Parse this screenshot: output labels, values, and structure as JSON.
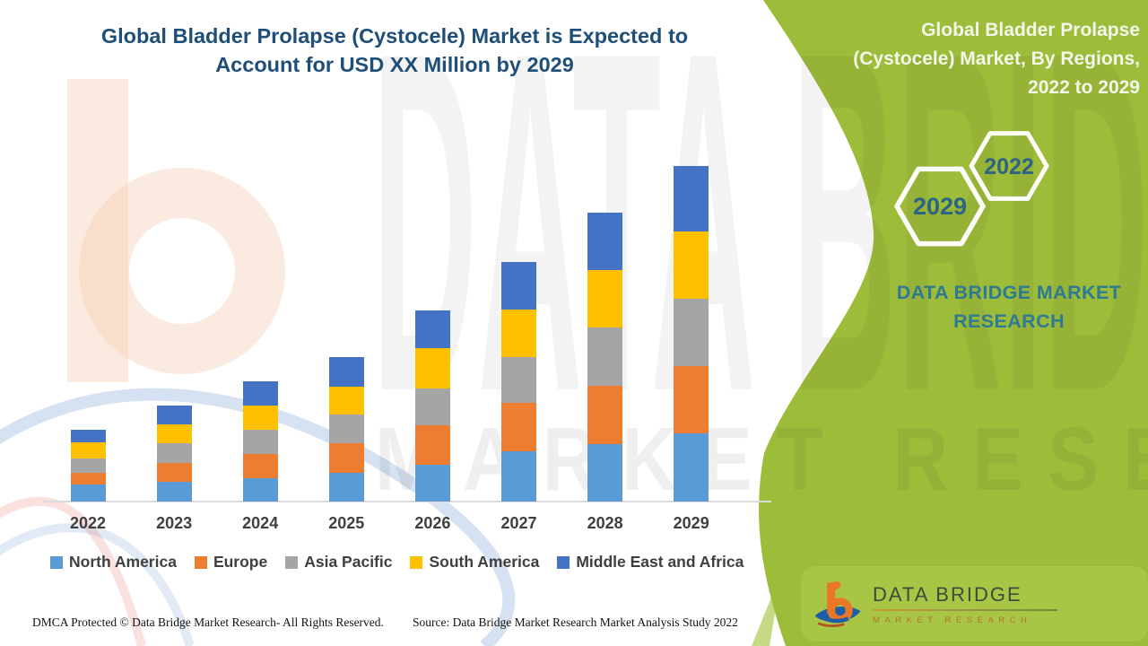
{
  "header": {
    "title_lines": [
      "Global Bladder Prolapse (Cystocele) Market is Expected to",
      "Account for USD XX Million by 2029"
    ]
  },
  "side_panel": {
    "title_lines": [
      "Global Bladder Prolapse",
      "(Cystocele) Market, By Regions,",
      "2022 to 2029"
    ],
    "hexagon_years": {
      "start": "2022",
      "end": "2029"
    },
    "brand_text": "DATA BRIDGE MARKET RESEARCH"
  },
  "watermarks": {
    "brand_text": "DATA BRIDGE",
    "sub_text": "MARKET RESEARCH"
  },
  "chart_data": {
    "type": "bar",
    "stacked": true,
    "title": "Global Bladder Prolapse (Cystocele) Market is Expected to Account for USD XX Million by 2029",
    "xlabel": "",
    "ylabel": "",
    "y_axis_labels_visible": false,
    "grid": false,
    "legend_position": "bottom",
    "categories": [
      "2022",
      "2023",
      "2024",
      "2025",
      "2026",
      "2027",
      "2028",
      "2029"
    ],
    "series": [
      {
        "name": "North America",
        "color": "#5B9BD5",
        "values": [
          19,
          22,
          26,
          32,
          41,
          56,
          64,
          76
        ]
      },
      {
        "name": "Europe",
        "color": "#ED7D31",
        "values": [
          13,
          21,
          27,
          33,
          44,
          54,
          65,
          75
        ]
      },
      {
        "name": "Asia Pacific",
        "color": "#A5A5A5",
        "values": [
          16,
          22,
          27,
          32,
          41,
          51,
          65,
          75
        ]
      },
      {
        "name": "South America",
        "color": "#FFC000",
        "values": [
          18,
          21,
          27,
          31,
          45,
          53,
          64,
          75
        ]
      },
      {
        "name": "Middle East and Africa",
        "color": "#4472C4",
        "values": [
          14,
          21,
          27,
          33,
          42,
          53,
          64,
          73
        ]
      }
    ],
    "stack_totals": [
      80,
      107,
      134,
      161,
      213,
      267,
      322,
      374
    ]
  },
  "footer": {
    "dmca_text": "DMCA Protected © Data Bridge Market Research- All Rights Reserved.",
    "source_text": "Source: Data Bridge Market Research Market Analysis Study 2022"
  },
  "logo": {
    "title": "DATA BRIDGE",
    "subtitle": "MARKET RESEARCH"
  },
  "colors": {
    "green_panel": "#9DBC3A",
    "green_card": "#A8C545",
    "title_navy": "#1F4E79",
    "teal_text": "#2E7A93",
    "hex_year_text": "#2D6383",
    "axis_gray": "#DCDCDC",
    "label_gray": "#3F3F3F"
  }
}
